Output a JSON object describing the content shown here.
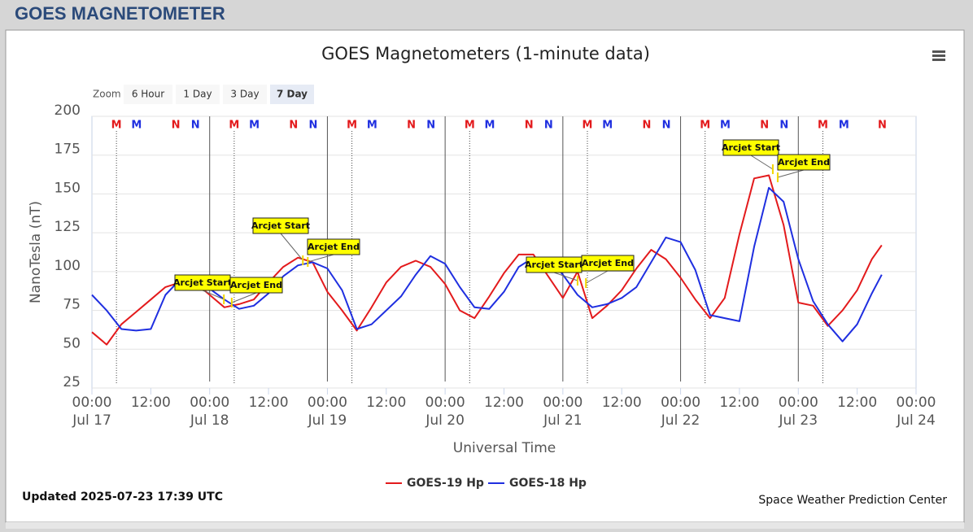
{
  "header": {
    "title": "GOES MAGNETOMETER"
  },
  "chart_data": {
    "type": "line",
    "title": "GOES Magnetometers (1-minute data)",
    "xlabel": "Universal Time",
    "ylabel": "NanoTesla (nT)",
    "zoom": {
      "label": "Zoom",
      "buttons": [
        "6 Hour",
        "1 Day",
        "3 Day",
        "7 Day"
      ],
      "active": 3
    },
    "x": [
      0,
      3,
      6,
      9,
      12,
      15,
      18,
      21,
      24,
      27,
      30,
      33,
      36,
      39,
      42,
      45,
      48,
      51,
      54,
      57,
      60,
      63,
      66,
      69,
      72,
      75,
      78,
      81,
      84,
      87,
      90,
      93,
      96,
      99,
      102,
      105,
      108,
      111,
      114,
      117,
      120,
      123,
      126,
      129,
      132,
      135,
      138,
      141,
      144,
      147,
      150,
      153,
      156,
      159,
      161
    ],
    "series": [
      {
        "name": "GOES-19 Hp",
        "color": "#e31a1c",
        "values": [
          61,
          53,
          66,
          74,
          82,
          90,
          93,
          93,
          85,
          77,
          79,
          82,
          93,
          103,
          109,
          106,
          87,
          75,
          62,
          77,
          93,
          103,
          107,
          103,
          92,
          75,
          70,
          84,
          99,
          111,
          111,
          97,
          83,
          100,
          70,
          78,
          88,
          102,
          114,
          108,
          96,
          82,
          70,
          83,
          124,
          160,
          162,
          130,
          80,
          78,
          65,
          75,
          88,
          108,
          117
        ]
      },
      {
        "name": "GOES-18 Hp",
        "color": "#1f2fe0",
        "values": [
          85,
          75,
          63,
          62,
          63,
          85,
          95,
          95,
          89,
          82,
          76,
          78,
          86,
          97,
          104,
          106,
          102,
          88,
          63,
          66,
          75,
          84,
          98,
          110,
          105,
          90,
          77,
          76,
          87,
          103,
          109,
          109,
          98,
          85,
          77,
          79,
          83,
          90,
          106,
          122,
          119,
          101,
          72,
          70,
          68,
          116,
          154,
          145,
          108,
          81,
          66,
          55,
          66,
          86,
          98
        ]
      }
    ],
    "xlim": [
      0,
      168
    ],
    "xticks": [
      {
        "value": 0,
        "label": "00:00\nJul 17"
      },
      {
        "value": 12,
        "label": "12:00"
      },
      {
        "value": 24,
        "label": "00:00\nJul 18"
      },
      {
        "value": 36,
        "label": "12:00"
      },
      {
        "value": 48,
        "label": "00:00\nJul 19"
      },
      {
        "value": 60,
        "label": "12:00"
      },
      {
        "value": 72,
        "label": "00:00\nJul 20"
      },
      {
        "value": 84,
        "label": "12:00"
      },
      {
        "value": 96,
        "label": "00:00\nJul 21"
      },
      {
        "value": 108,
        "label": "12:00"
      },
      {
        "value": 120,
        "label": "00:00\nJul 22"
      },
      {
        "value": 132,
        "label": "12:00"
      },
      {
        "value": 144,
        "label": "00:00\nJul 23"
      },
      {
        "value": 156,
        "label": "12:00"
      },
      {
        "value": 168,
        "label": "00:00\nJul 24"
      }
    ],
    "ylim": [
      25,
      200
    ],
    "yticks": [
      25,
      50,
      75,
      100,
      125,
      150,
      175,
      200
    ],
    "grid": true,
    "day_lines": true,
    "markers": [
      {
        "label": "M",
        "color": "#e31a1c",
        "x": 5,
        "dotted": true
      },
      {
        "label": "M",
        "color": "#1f2fe0",
        "x": 9.1
      },
      {
        "label": "N",
        "color": "#e31a1c",
        "x": 17.1
      },
      {
        "label": "N",
        "color": "#1f2fe0",
        "x": 21.1
      },
      {
        "label": "M",
        "color": "#e31a1c",
        "x": 29,
        "dotted": true
      },
      {
        "label": "M",
        "color": "#1f2fe0",
        "x": 33.1
      },
      {
        "label": "N",
        "color": "#e31a1c",
        "x": 41.1
      },
      {
        "label": "N",
        "color": "#1f2fe0",
        "x": 45.1
      },
      {
        "label": "M",
        "color": "#e31a1c",
        "x": 53,
        "dotted": true
      },
      {
        "label": "M",
        "color": "#1f2fe0",
        "x": 57.1
      },
      {
        "label": "N",
        "color": "#e31a1c",
        "x": 65.1
      },
      {
        "label": "N",
        "color": "#1f2fe0",
        "x": 69.1
      },
      {
        "label": "M",
        "color": "#e31a1c",
        "x": 77,
        "dotted": true
      },
      {
        "label": "M",
        "color": "#1f2fe0",
        "x": 81.1
      },
      {
        "label": "N",
        "color": "#e31a1c",
        "x": 89.1
      },
      {
        "label": "N",
        "color": "#1f2fe0",
        "x": 93.1
      },
      {
        "label": "M",
        "color": "#e31a1c",
        "x": 101,
        "dotted": true
      },
      {
        "label": "M",
        "color": "#1f2fe0",
        "x": 105.1
      },
      {
        "label": "N",
        "color": "#e31a1c",
        "x": 113.1
      },
      {
        "label": "N",
        "color": "#1f2fe0",
        "x": 117.1
      },
      {
        "label": "M",
        "color": "#e31a1c",
        "x": 125,
        "dotted": true
      },
      {
        "label": "M",
        "color": "#1f2fe0",
        "x": 129.1
      },
      {
        "label": "N",
        "color": "#e31a1c",
        "x": 137.1
      },
      {
        "label": "N",
        "color": "#1f2fe0",
        "x": 141.1
      },
      {
        "label": "M",
        "color": "#e31a1c",
        "x": 149,
        "dotted": true
      },
      {
        "label": "M",
        "color": "#1f2fe0",
        "x": 153.3
      },
      {
        "label": "N",
        "color": "#e31a1c",
        "x": 161.1
      }
    ],
    "annotations": [
      {
        "label": "Arcjet Start",
        "x": 26.9
      },
      {
        "label": "Arcjet End",
        "x": 28.5
      },
      {
        "label": "Arcjet Start",
        "x": 43
      },
      {
        "label": "Arcjet End",
        "x": 44
      },
      {
        "label": "Arcjet Start",
        "x": 99
      },
      {
        "label": "Arcjet End",
        "x": 100.7
      },
      {
        "label": "Arcjet Start",
        "x": 138.8
      },
      {
        "label": "Arcjet End",
        "x": 139.8
      }
    ],
    "updated": "Updated 2025-07-23 17:39 UTC",
    "credit": "Space Weather Prediction Center"
  }
}
